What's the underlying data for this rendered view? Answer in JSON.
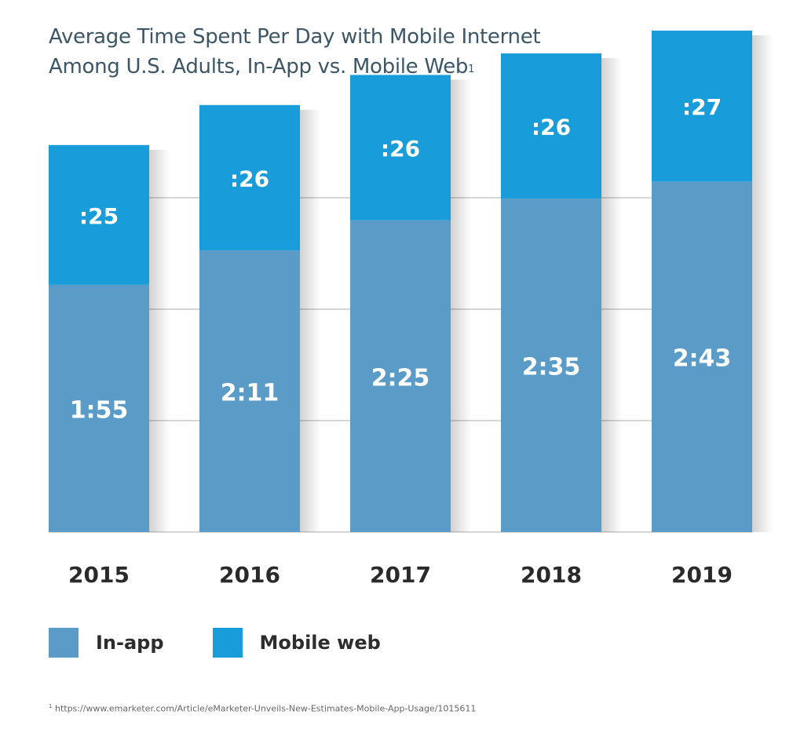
{
  "chart_data": {
    "type": "bar",
    "stacked": true,
    "title_line1": "Average Time Spent Per Day with Mobile Internet",
    "title_line2": "Among U.S. Adults, In-App vs. Mobile Web",
    "title_footnote_mark": "1",
    "categories": [
      "2015",
      "2016",
      "2017",
      "2018",
      "2019"
    ],
    "series": [
      {
        "name": "In-app",
        "color": "#5b9bc7",
        "values_minutes": [
          115,
          131,
          145,
          155,
          163
        ],
        "labels": [
          "1:55",
          "2:11",
          "2:25",
          "2:35",
          "2:43"
        ]
      },
      {
        "name": "Mobile web",
        "color": "#189dda",
        "values_minutes": [
          25,
          26,
          26,
          26,
          27
        ],
        "labels": [
          ":25",
          ":26",
          ":26",
          ":26",
          ":27"
        ]
      }
    ],
    "xlabel": "",
    "ylabel": "",
    "ylim": [
      0,
      200
    ],
    "grid": true,
    "legend_position": "bottom-left"
  },
  "footnote": {
    "mark": "1",
    "text": "https://www.emarketer.com/Article/eMarketer-Unveils-New-Estimates-Mobile-App-Usage/1015611"
  }
}
